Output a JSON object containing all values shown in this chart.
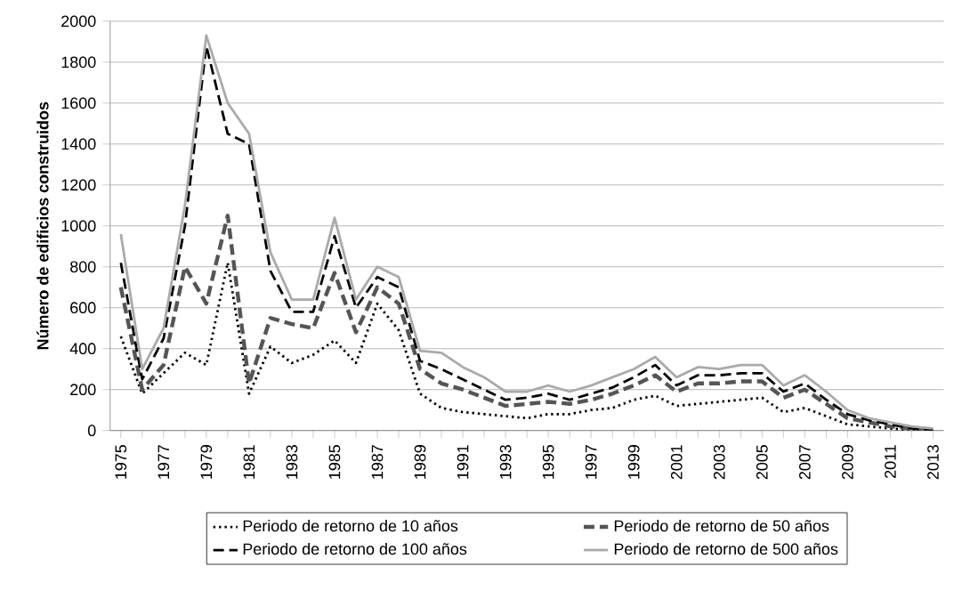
{
  "chart_data": {
    "type": "line",
    "ylabel": "Número de edificios construidos",
    "categories": [
      "1975",
      null,
      "1977",
      null,
      "1979",
      null,
      "1981",
      null,
      "1983",
      null,
      "1985",
      null,
      "1987",
      null,
      "1989",
      null,
      "1991",
      null,
      "1993",
      null,
      "1995",
      null,
      "1997",
      null,
      "1999",
      null,
      "2001",
      null,
      "2003",
      null,
      "2005",
      null,
      "2007",
      null,
      "2009",
      null,
      "2011",
      null,
      "2013"
    ],
    "series": [
      {
        "name": "Periodo de retorno de 10 años",
        "color": "#000000",
        "line_style": "dotted",
        "values": [
          460,
          180,
          280,
          380,
          320,
          820,
          180,
          410,
          330,
          370,
          440,
          330,
          620,
          490,
          180,
          110,
          90,
          80,
          70,
          60,
          80,
          80,
          100,
          110,
          150,
          170,
          120,
          130,
          140,
          150,
          160,
          90,
          110,
          70,
          30,
          20,
          10,
          0,
          0
        ]
      },
      {
        "name": "Periodo de retorno de 50 años",
        "color": "#555555",
        "line_style": "dashed",
        "values": [
          700,
          200,
          320,
          800,
          620,
          1050,
          230,
          550,
          520,
          500,
          770,
          480,
          700,
          620,
          300,
          230,
          200,
          160,
          120,
          130,
          140,
          130,
          150,
          180,
          220,
          270,
          190,
          230,
          230,
          240,
          240,
          160,
          200,
          130,
          60,
          40,
          20,
          10,
          0
        ]
      },
      {
        "name": "Periodo de retorno de 100 años",
        "color": "#000000",
        "line_style": "dashed",
        "values": [
          820,
          250,
          450,
          1000,
          1880,
          1450,
          1400,
          780,
          580,
          580,
          950,
          600,
          750,
          700,
          340,
          300,
          250,
          200,
          150,
          160,
          180,
          150,
          180,
          210,
          260,
          320,
          220,
          270,
          270,
          280,
          280,
          190,
          230,
          150,
          80,
          50,
          30,
          10,
          0
        ]
      },
      {
        "name": "Periodo de retorno de 500 años",
        "color": "#aaaaaa",
        "line_style": "solid",
        "values": [
          960,
          300,
          500,
          1100,
          1930,
          1600,
          1450,
          870,
          640,
          640,
          1040,
          640,
          800,
          750,
          390,
          380,
          310,
          260,
          190,
          190,
          220,
          190,
          220,
          260,
          300,
          360,
          260,
          310,
          300,
          320,
          320,
          220,
          270,
          190,
          100,
          60,
          40,
          20,
          10
        ]
      }
    ],
    "ylim": [
      0,
      2000
    ],
    "yticks": [
      0,
      200,
      400,
      600,
      800,
      1000,
      1200,
      1400,
      1600,
      1800,
      2000
    ],
    "grid": "y",
    "legend": "bottom",
    "marker": "none"
  }
}
